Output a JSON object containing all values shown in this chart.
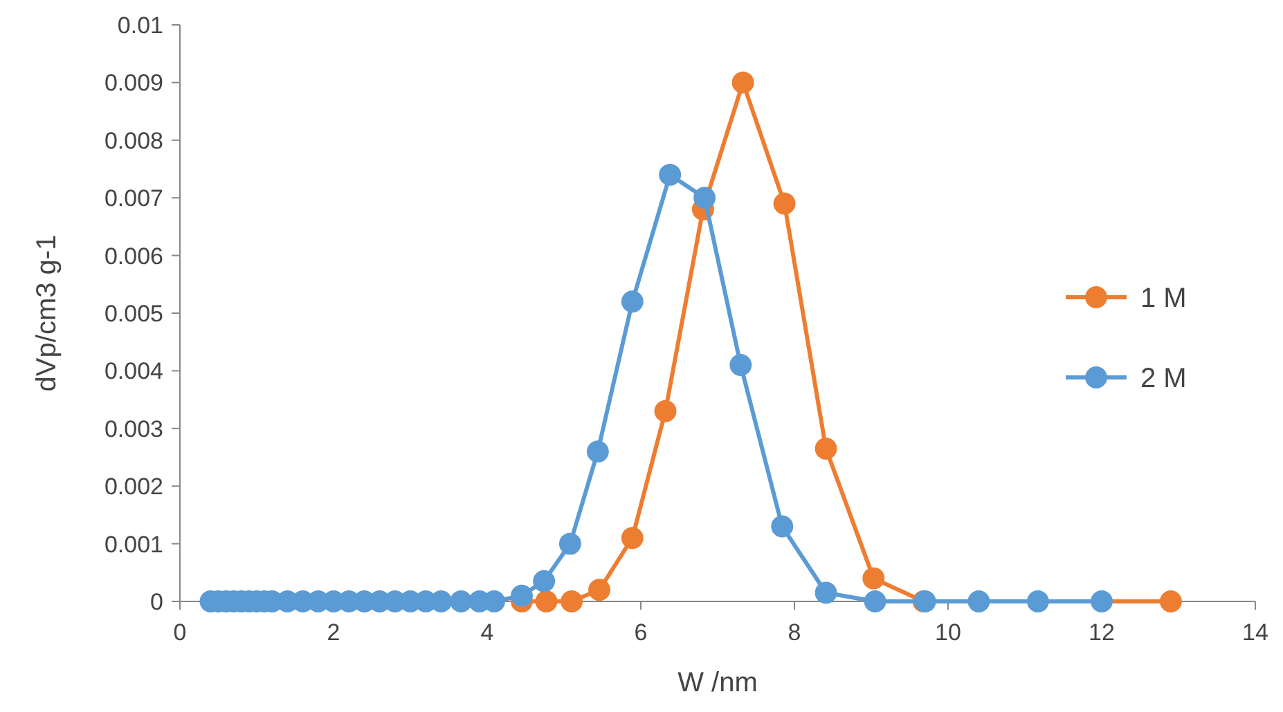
{
  "chart_data": {
    "type": "line",
    "xlabel": "W /nm",
    "ylabel": "dVp/cm3 g-1",
    "xlim": [
      0,
      14
    ],
    "xticks": [
      0,
      2,
      4,
      6,
      8,
      10,
      12,
      14
    ],
    "ylim": [
      0,
      0.01
    ],
    "yticks": [
      0,
      0.001,
      0.002,
      0.003,
      0.004,
      0.005,
      0.006,
      0.007,
      0.008,
      0.009,
      0.01
    ],
    "marker": "circle",
    "legend": "right",
    "grid": false,
    "series": [
      {
        "name": "1 M",
        "color": "#ed7d31",
        "x": [
          4.45,
          4.77,
          5.1,
          5.46,
          5.89,
          6.32,
          6.81,
          7.33,
          7.87,
          8.41,
          9.03,
          9.68,
          12.9
        ],
        "values": [
          0,
          0,
          0,
          0.0002,
          0.0011,
          0.0033,
          0.0068,
          0.009,
          0.0069,
          0.00265,
          0.0004,
          0,
          0
        ]
      },
      {
        "name": "2 M",
        "color": "#5b9bd5",
        "x": [
          0.4,
          0.5,
          0.6,
          0.7,
          0.8,
          0.9,
          1.0,
          1.1,
          1.2,
          1.4,
          1.6,
          1.8,
          2.0,
          2.2,
          2.4,
          2.6,
          2.8,
          3.0,
          3.2,
          3.4,
          3.66,
          3.9,
          4.09,
          4.45,
          4.74,
          5.08,
          5.44,
          5.89,
          6.38,
          6.83,
          7.3,
          7.84,
          8.41,
          9.05,
          9.7,
          10.4,
          11.17,
          12.0
        ],
        "values": [
          0,
          0,
          0,
          0,
          0,
          0,
          0,
          0,
          0,
          0,
          0,
          0,
          0,
          0,
          0,
          0,
          0,
          0,
          0,
          0,
          0,
          0,
          0,
          0.0001,
          0.00035,
          0.001,
          0.0026,
          0.0052,
          0.0074,
          0.007,
          0.0041,
          0.0013,
          0.00015,
          0,
          0,
          0,
          0,
          0
        ]
      }
    ]
  }
}
